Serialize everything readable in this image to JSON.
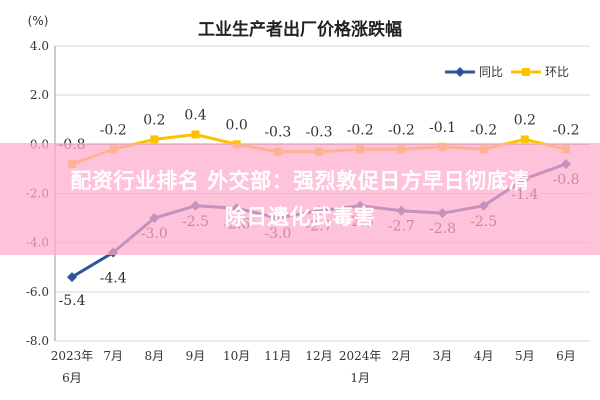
{
  "chart_data": {
    "type": "line",
    "title": "工业生产者出厂价格涨跌幅",
    "ylabel": "(%)",
    "xlabel": "",
    "categories": [
      "2023年\n6月",
      "7月",
      "8月",
      "9月",
      "10月",
      "11月",
      "12月",
      "2024年\n1月",
      "2月",
      "3月",
      "4月",
      "5月",
      "6月"
    ],
    "ylim": [
      -8.0,
      4.0
    ],
    "yticks": [
      4.0,
      2.0,
      0.0,
      -2.0,
      -4.0,
      -6.0,
      -8.0
    ],
    "ytick_labels": [
      "4.0",
      "2.0",
      "0.0",
      "-2.0",
      "-4.0",
      "-6.0",
      "-8.0"
    ],
    "grid": true,
    "legend_position": "top-right",
    "series": [
      {
        "name": "同比",
        "color": "#2f5597",
        "values": [
          -5.4,
          -4.4,
          -3.0,
          -2.5,
          -2.6,
          -3.0,
          -2.7,
          -2.5,
          -2.7,
          -2.8,
          -2.5,
          -1.4,
          -0.8
        ],
        "labels": [
          "-5.4",
          "-4.4",
          "-3.0",
          "-2.5",
          "-2.6",
          "-3.0",
          "-2.7",
          "-2.5",
          "-2.7",
          "-2.8",
          "-2.5",
          "-1.4",
          "-0.8"
        ]
      },
      {
        "name": "环比",
        "color": "#ffc000",
        "values": [
          -0.8,
          -0.2,
          0.2,
          0.4,
          0.0,
          -0.3,
          -0.3,
          -0.2,
          -0.2,
          -0.1,
          -0.2,
          0.2,
          -0.2
        ],
        "labels": [
          "-0.8",
          "-0.2",
          "0.2",
          "0.4",
          "0.0",
          "-0.3",
          "-0.3",
          "-0.2",
          "-0.2",
          "-0.1",
          "-0.2",
          "0.2",
          "-0.2"
        ]
      }
    ]
  },
  "overlay": {
    "line1": "配资行业排名 外交部：强烈敦促日方早日彻底清",
    "line2": "除日遗化武毒害"
  }
}
